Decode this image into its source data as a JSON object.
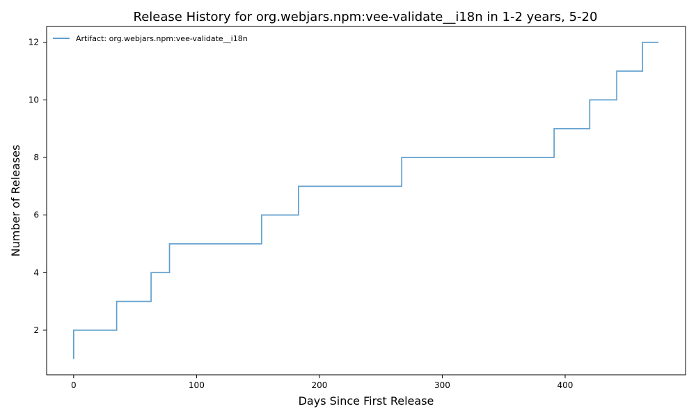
{
  "chart_data": {
    "type": "line",
    "step": "post",
    "title": "Release History for org.webjars.npm:vee-validate__i18n in 1-2 years, 5-20",
    "xlabel": "Days Since First Release",
    "ylabel": "Number of Releases",
    "xlim": [
      -22,
      498
    ],
    "ylim": [
      0.45,
      12.55
    ],
    "xticks": [
      0,
      100,
      200,
      300,
      400
    ],
    "yticks": [
      2,
      4,
      6,
      8,
      10,
      12
    ],
    "grid": false,
    "legend_position": "top-left",
    "series": [
      {
        "name": "Artifact: org.webjars.npm:vee-validate__i18n",
        "color": "#5f9fce",
        "x": [
          0,
          0,
          35,
          63,
          78,
          153,
          183,
          267,
          391,
          420,
          442,
          463,
          476
        ],
        "y": [
          1,
          2,
          3,
          4,
          5,
          6,
          7,
          8,
          9,
          10,
          11,
          12,
          12
        ]
      }
    ]
  }
}
